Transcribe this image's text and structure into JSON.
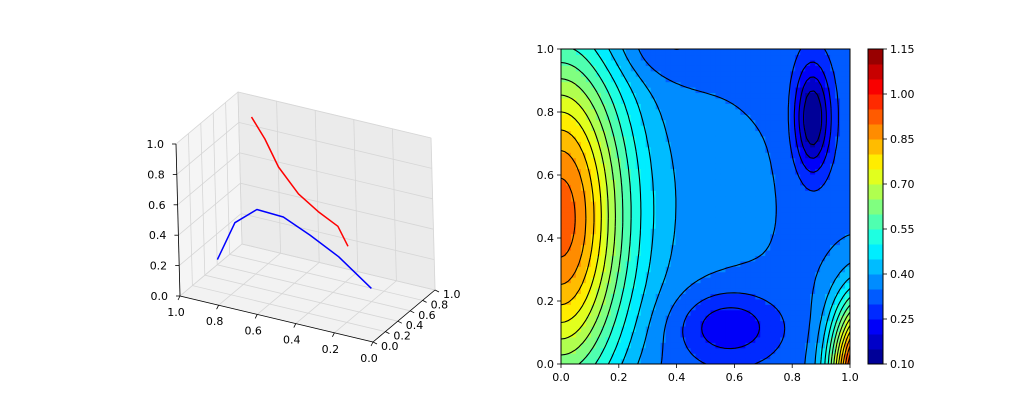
{
  "chart_data": [
    {
      "type": "line3d",
      "xlim": [
        0,
        1
      ],
      "ylim": [
        0,
        1
      ],
      "zlim": [
        0,
        1
      ],
      "x_ticks": [
        "1.0",
        "0.8",
        "0.6",
        "0.4",
        "0.2",
        "0.0"
      ],
      "y_ticks": [
        "0.0",
        "0.2",
        "0.4",
        "0.6",
        "0.8",
        "1.0"
      ],
      "z_ticks": [
        "0.0",
        "0.2",
        "0.4",
        "0.6",
        "0.8",
        "1.0"
      ],
      "grid": true,
      "series": [
        {
          "color": "#ff0000",
          "points": [
            [
              0.15,
              0.1,
              0.55
            ],
            [
              0.25,
              0.25,
              0.6
            ],
            [
              0.4,
              0.4,
              0.6
            ],
            [
              0.55,
              0.55,
              0.62
            ],
            [
              0.7,
              0.7,
              0.7
            ],
            [
              0.8,
              0.8,
              0.82
            ],
            [
              0.9,
              0.9,
              0.9
            ]
          ]
        },
        {
          "color": "#0000ff",
          "points": [
            [
              0.8,
              0.0,
              0.3
            ],
            [
              0.72,
              0.05,
              0.55
            ],
            [
              0.62,
              0.1,
              0.65
            ],
            [
              0.5,
              0.15,
              0.62
            ],
            [
              0.38,
              0.2,
              0.52
            ],
            [
              0.25,
              0.25,
              0.4
            ],
            [
              0.1,
              0.3,
              0.22
            ]
          ]
        }
      ]
    },
    {
      "type": "contour",
      "xlim": [
        0,
        1
      ],
      "ylim": [
        0,
        1
      ],
      "x_ticks": [
        "0.0",
        "0.2",
        "0.4",
        "0.6",
        "0.8",
        "1.0"
      ],
      "y_ticks": [
        "0.0",
        "0.2",
        "0.4",
        "0.6",
        "0.8",
        "1.0"
      ],
      "colormap": "jet",
      "levels": [
        0.1,
        0.15,
        0.2,
        0.25,
        0.3,
        0.35,
        0.4,
        0.45,
        0.5,
        0.55,
        0.6,
        0.65,
        0.7,
        0.75,
        0.8,
        0.85,
        0.9,
        0.95,
        1.0,
        1.05,
        1.1,
        1.15
      ],
      "colorbar_ticks": [
        "0.10",
        "0.25",
        "0.40",
        "0.55",
        "0.70",
        "0.85",
        "1.00",
        "1.15"
      ],
      "minima": [
        {
          "x": 0.87,
          "y": 0.78,
          "value": 0.1
        },
        {
          "x": 0.6,
          "y": 0.12,
          "value": 0.22
        }
      ],
      "maxima": [
        {
          "x": 0.0,
          "y": 0.45,
          "value": 0.85
        },
        {
          "x": 1.0,
          "y": 0.0,
          "value": 1.15
        }
      ]
    }
  ]
}
